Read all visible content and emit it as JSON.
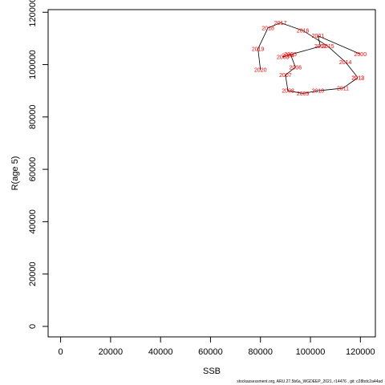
{
  "chart_data": {
    "type": "line",
    "xlabel": "SSB",
    "ylabel": "R(age 5)",
    "xlim": [
      -5000,
      126000
    ],
    "ylim": [
      -4000,
      121000
    ],
    "xticks": [
      0,
      20000,
      40000,
      60000,
      80000,
      100000,
      120000
    ],
    "yticks": [
      0,
      20000,
      40000,
      60000,
      80000,
      100000,
      120000
    ],
    "grid": false,
    "line_color": "#000000",
    "label_color": "#ff0000",
    "series": [
      {
        "points": [
          {
            "year": "2000",
            "x": 120000,
            "y": 104000
          },
          {
            "year": "2001",
            "x": 103000,
            "y": 111000
          },
          {
            "year": "2002",
            "x": 104000,
            "y": 107000
          },
          {
            "year": "2003",
            "x": 89000,
            "y": 103000
          },
          {
            "year": "2004",
            "x": 91000,
            "y": 103500
          },
          {
            "year": "2005",
            "x": 92000,
            "y": 104000
          },
          {
            "year": "2006",
            "x": 94000,
            "y": 99000
          },
          {
            "year": "2007",
            "x": 90000,
            "y": 96000
          },
          {
            "year": "2008",
            "x": 91000,
            "y": 90000
          },
          {
            "year": "2009",
            "x": 97000,
            "y": 89000
          },
          {
            "year": "2010",
            "x": 103000,
            "y": 90000
          },
          {
            "year": "2011",
            "x": 113000,
            "y": 91000
          },
          {
            "year": "2012",
            "x": 119000,
            "y": 95000
          },
          {
            "year": "2013",
            "x": 119000,
            "y": 95000
          },
          {
            "year": "2014",
            "x": 114000,
            "y": 101000
          },
          {
            "year": "2015",
            "x": 107000,
            "y": 107000
          },
          {
            "year": "2016",
            "x": 97000,
            "y": 113000
          },
          {
            "year": "2017",
            "x": 88000,
            "y": 116000
          },
          {
            "year": "2018",
            "x": 83000,
            "y": 114000
          },
          {
            "year": "2019",
            "x": 79000,
            "y": 106000
          },
          {
            "year": "2020",
            "x": 80000,
            "y": 98000
          }
        ]
      }
    ]
  },
  "footer": "stockassessment.org, ARU.27.5b6a_WGDEEP_2021, r14476 , git: c28bdc2a44ad"
}
